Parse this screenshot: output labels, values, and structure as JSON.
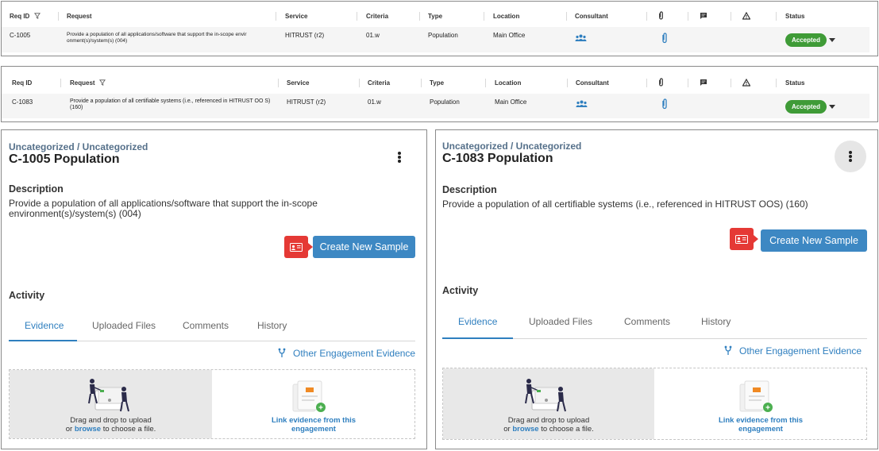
{
  "tables": [
    {
      "headers": {
        "req_id": "Req ID",
        "request": "Request",
        "service": "Service",
        "criteria": "Criteria",
        "type": "Type",
        "location": "Location",
        "consultant": "Consultant",
        "status": "Status"
      },
      "filter_on": "req_id",
      "row": {
        "req_id": "C-1005",
        "request": "Provide a population of all applications/software that support the in-scope envir onment(s)/system(s) (004)",
        "service": "HITRUST (r2)",
        "criteria": "01.w",
        "type": "Population",
        "location": "Main Office",
        "status": "Accepted"
      }
    },
    {
      "headers": {
        "req_id": "Req ID",
        "request": "Request",
        "service": "Service",
        "criteria": "Criteria",
        "type": "Type",
        "location": "Location",
        "consultant": "Consultant",
        "status": "Status"
      },
      "filter_on": "request",
      "row": {
        "req_id": "C-1083",
        "request": "Provide a population of all certifiable systems (i.e., referenced in HITRUST OO S) (160)",
        "service": "HITRUST (r2)",
        "criteria": "01.w",
        "type": "Population",
        "location": "Main Office",
        "status": "Accepted"
      }
    }
  ],
  "panels": [
    {
      "category": "Uncategorized / Uncategorized",
      "title": "C-1005 Population",
      "description_heading": "Description",
      "description": "Provide a population of all applications/software that support the in-scope environment(s)/system(s) (004)",
      "create_button": "Create New Sample",
      "activity_heading": "Activity",
      "tabs": [
        "Evidence",
        "Uploaded Files",
        "Comments",
        "History"
      ],
      "active_tab": "Evidence",
      "other_evidence": "Other Engagement Evidence",
      "drag_line1": "Drag and drop to upload",
      "drag_or": "or",
      "drag_browse": "browse",
      "drag_rest": "to choose a file.",
      "link_evidence": "Link evidence from this engagement"
    },
    {
      "category": "Uncategorized / Uncategorized",
      "title": "C-1083 Population",
      "description_heading": "Description",
      "description": "Provide a population of all certifiable systems (i.e., referenced in HITRUST OOS) (160)",
      "create_button": "Create New Sample",
      "activity_heading": "Activity",
      "tabs": [
        "Evidence",
        "Uploaded Files",
        "Comments",
        "History"
      ],
      "active_tab": "Evidence",
      "other_evidence": "Other Engagement Evidence",
      "drag_line1": "Drag and drop to upload",
      "drag_or": "or",
      "drag_browse": "browse",
      "drag_rest": "to choose a file.",
      "link_evidence": "Link evidence from this engagement"
    }
  ],
  "colors": {
    "accepted": "#3f9b37",
    "primary": "#3d88c3",
    "link": "#2f7fbf",
    "sample_icon": "#e53935",
    "category": "#55708a"
  }
}
